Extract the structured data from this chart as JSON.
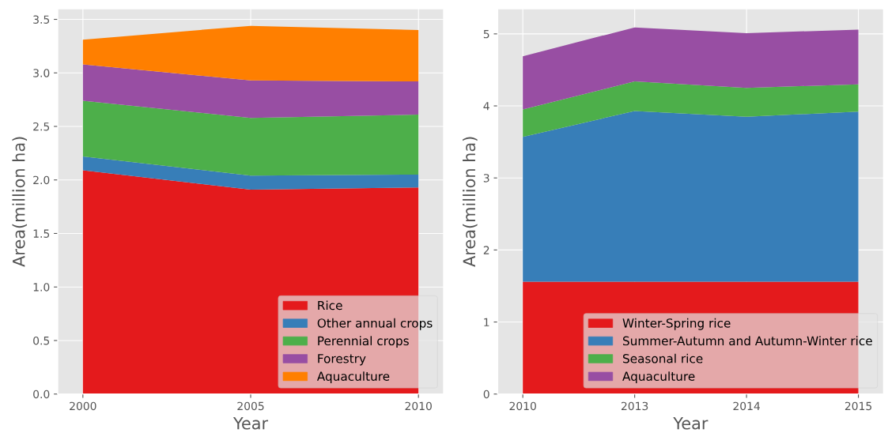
{
  "chart_data": [
    {
      "type": "area",
      "stacked": true,
      "xlabel": "Year",
      "ylabel": "Area(million ha)",
      "categories": [
        "2000",
        "2005",
        "2010"
      ],
      "series": [
        {
          "name": "Rice",
          "color": "#e41a1c",
          "values": [
            2.09,
            1.91,
            1.93
          ]
        },
        {
          "name": "Other annual crops",
          "color": "#377eb8",
          "values": [
            0.13,
            0.13,
            0.12
          ]
        },
        {
          "name": "Perennial crops",
          "color": "#4daf4a",
          "values": [
            0.52,
            0.54,
            0.56
          ]
        },
        {
          "name": "Forestry",
          "color": "#984ea3",
          "values": [
            0.34,
            0.35,
            0.31
          ]
        },
        {
          "name": "Aquaculture",
          "color": "#ff7f00",
          "values": [
            0.23,
            0.51,
            0.48
          ]
        }
      ],
      "ylim": [
        0,
        3.6
      ],
      "yticks": [
        {
          "value": 0,
          "label": "0.0"
        },
        {
          "value": 0.5,
          "label": "0.5"
        },
        {
          "value": 1,
          "label": "1.0"
        },
        {
          "value": 1.5,
          "label": "1.5"
        },
        {
          "value": 2,
          "label": "2.0"
        },
        {
          "value": 2.5,
          "label": "2.5"
        },
        {
          "value": 3,
          "label": "3.0"
        },
        {
          "value": 3.5,
          "label": "3.5"
        }
      ],
      "grid": true,
      "legend": "bottom right"
    },
    {
      "type": "area",
      "stacked": true,
      "xlabel": "Year",
      "ylabel": "Area(million ha)",
      "categories": [
        "2010",
        "2013",
        "2014",
        "2015"
      ],
      "series": [
        {
          "name": "Winter-Spring rice",
          "color": "#e41a1c",
          "values": [
            1.56,
            1.56,
            1.56,
            1.56
          ]
        },
        {
          "name": "Summer-Autumn and Autumn-Winter rice",
          "color": "#377eb8",
          "values": [
            2.01,
            2.37,
            2.29,
            2.36
          ]
        },
        {
          "name": "Seasonal rice",
          "color": "#4daf4a",
          "values": [
            0.38,
            0.41,
            0.4,
            0.38
          ]
        },
        {
          "name": "Aquaculture",
          "color": "#984ea3",
          "values": [
            0.74,
            0.75,
            0.76,
            0.76
          ]
        }
      ],
      "ylim": [
        0,
        5.35
      ],
      "yticks": [
        0,
        1,
        2,
        3,
        4,
        5
      ],
      "grid": true,
      "legend": "bottom right"
    }
  ]
}
